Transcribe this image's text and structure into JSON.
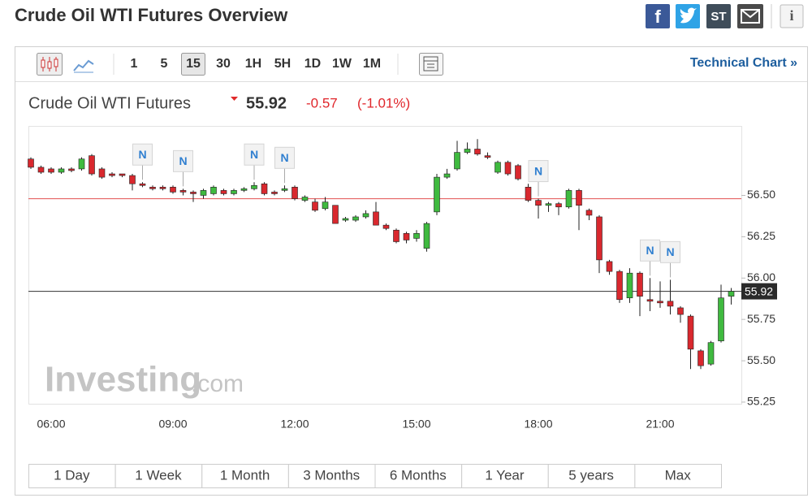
{
  "header": {
    "title": "Crude Oil WTI Futures Overview",
    "share": {
      "stocktwits": "ST"
    }
  },
  "toolbar": {
    "intervals": [
      "1",
      "5",
      "15",
      "30",
      "1H",
      "5H",
      "1D",
      "1W",
      "1M"
    ],
    "selected": "15",
    "link": "Technical Chart »"
  },
  "quote": {
    "name": "Crude Oil WTI Futures",
    "price": "55.92",
    "change": "-0.57",
    "change_pct": "(-1.01%)"
  },
  "chart_data": {
    "type": "candlestick",
    "x": [
      "05:30",
      "05:45",
      "06:00",
      "06:15",
      "06:30",
      "06:45",
      "07:00",
      "07:15",
      "07:30",
      "07:45",
      "08:00",
      "08:15",
      "08:30",
      "08:45",
      "09:00",
      "09:15",
      "09:30",
      "09:45",
      "10:00",
      "10:15",
      "10:30",
      "10:45",
      "11:00",
      "11:15",
      "11:30",
      "11:45",
      "12:00",
      "12:15",
      "12:30",
      "12:45",
      "13:00",
      "13:15",
      "13:30",
      "13:45",
      "14:00",
      "14:15",
      "14:30",
      "14:45",
      "15:00",
      "15:15",
      "15:30",
      "15:45",
      "16:00",
      "16:15",
      "16:30",
      "16:45",
      "17:00",
      "17:15",
      "17:30",
      "17:45",
      "18:00",
      "18:15",
      "18:30",
      "18:45",
      "19:00",
      "19:15",
      "19:30",
      "19:45",
      "20:00",
      "20:15",
      "20:30",
      "20:45",
      "21:00",
      "21:15",
      "21:30",
      "21:45",
      "22:00",
      "22:15",
      "22:30",
      "22:45"
    ],
    "open": [
      56.72,
      56.67,
      56.66,
      56.64,
      56.66,
      56.66,
      56.74,
      56.66,
      56.63,
      56.63,
      56.62,
      56.57,
      56.55,
      56.55,
      56.55,
      56.53,
      56.52,
      56.5,
      56.51,
      56.53,
      56.51,
      56.53,
      56.54,
      56.57,
      56.52,
      56.53,
      56.55,
      56.47,
      56.46,
      56.42,
      56.44,
      56.35,
      56.35,
      56.37,
      56.4,
      56.32,
      56.29,
      56.27,
      56.24,
      56.18,
      56.4,
      56.61,
      56.66,
      56.76,
      56.78,
      56.74,
      56.64,
      56.7,
      56.68,
      56.55,
      56.47,
      56.44,
      56.45,
      56.43,
      56.53,
      56.41,
      56.37,
      56.1,
      56.04,
      55.88,
      56.03,
      55.87,
      55.86,
      55.86,
      55.82,
      55.77,
      55.56,
      55.48,
      55.62,
      55.89
    ],
    "high": [
      56.73,
      56.68,
      56.67,
      56.67,
      56.67,
      56.73,
      56.75,
      56.67,
      56.64,
      56.63,
      56.63,
      56.58,
      56.56,
      56.56,
      56.56,
      56.54,
      56.53,
      56.54,
      56.56,
      56.54,
      56.54,
      56.55,
      56.58,
      56.58,
      56.53,
      56.56,
      56.56,
      56.5,
      56.48,
      56.49,
      56.44,
      56.37,
      56.38,
      56.41,
      56.46,
      56.33,
      56.3,
      56.28,
      56.29,
      56.34,
      56.63,
      56.66,
      56.83,
      56.82,
      56.84,
      56.76,
      56.71,
      56.71,
      56.69,
      56.57,
      56.48,
      56.46,
      56.46,
      56.54,
      56.54,
      56.42,
      56.38,
      56.11,
      56.05,
      56.06,
      56.04,
      56.0,
      55.98,
      55.99,
      55.83,
      55.78,
      55.57,
      55.62,
      55.96,
      55.94
    ],
    "low": [
      56.66,
      56.63,
      56.63,
      56.63,
      56.64,
      56.65,
      56.62,
      56.6,
      56.61,
      56.61,
      56.53,
      56.55,
      56.53,
      56.53,
      56.51,
      56.5,
      56.46,
      56.48,
      56.5,
      56.5,
      56.5,
      56.52,
      56.53,
      56.5,
      56.5,
      56.52,
      56.47,
      56.46,
      56.4,
      56.41,
      56.33,
      56.34,
      56.34,
      56.36,
      56.32,
      56.29,
      56.21,
      56.21,
      56.22,
      56.16,
      56.38,
      56.6,
      56.65,
      56.75,
      56.74,
      56.72,
      56.63,
      56.62,
      56.59,
      56.46,
      56.36,
      56.4,
      56.38,
      56.42,
      56.29,
      56.35,
      56.03,
      56.02,
      55.85,
      55.85,
      55.77,
      55.8,
      55.82,
      55.78,
      55.73,
      55.45,
      55.45,
      55.47,
      55.61,
      55.84
    ],
    "close": [
      56.67,
      56.64,
      56.64,
      56.66,
      56.65,
      56.72,
      56.63,
      56.61,
      56.62,
      56.62,
      56.57,
      56.56,
      56.54,
      56.54,
      56.52,
      56.52,
      56.51,
      56.53,
      56.55,
      56.51,
      56.53,
      56.54,
      56.56,
      56.51,
      56.51,
      56.54,
      56.48,
      56.49,
      56.41,
      56.46,
      56.33,
      56.36,
      56.37,
      56.39,
      56.32,
      56.3,
      56.22,
      56.23,
      56.27,
      56.33,
      56.61,
      56.63,
      56.76,
      56.78,
      56.75,
      56.73,
      56.7,
      56.63,
      56.6,
      56.47,
      56.44,
      56.45,
      56.43,
      56.53,
      56.44,
      56.38,
      56.11,
      56.04,
      55.87,
      56.03,
      55.89,
      55.86,
      55.85,
      55.83,
      55.78,
      55.57,
      55.47,
      55.61,
      55.88,
      55.92
    ],
    "up_color": "#3fba3f",
    "down_color": "#d9282e",
    "ylim": [
      55.24,
      56.92
    ],
    "yticks": [
      {
        "value": 56.5,
        "label": "56.50"
      },
      56.25,
      {
        "value": 56,
        "label": "56.00"
      },
      55.75,
      {
        "value": 55.5,
        "label": "55.50"
      },
      55.25
    ],
    "xticks": [
      "06:00",
      "09:00",
      "12:00",
      "15:00",
      "18:00",
      "21:00"
    ],
    "hlines": [
      {
        "value": 56.48,
        "color": "#e25050"
      },
      {
        "value": 55.92,
        "color": "#333333"
      }
    ],
    "news_markers": [
      {
        "time": "08:15",
        "label": "N"
      },
      {
        "time": "09:15",
        "label": "N"
      },
      {
        "time": "11:00",
        "label": "N"
      },
      {
        "time": "11:45",
        "label": "N"
      },
      {
        "time": "18:00",
        "label": "N"
      },
      {
        "time": "20:45",
        "label": "N"
      },
      {
        "time": "21:15",
        "label": "N"
      }
    ],
    "watermark": {
      "brand": "Investing",
      "suffix": ".com"
    }
  },
  "ranges": [
    "1 Day",
    "1 Week",
    "1 Month",
    "3 Months",
    "6 Months",
    "1 Year",
    "5 years",
    "Max"
  ]
}
